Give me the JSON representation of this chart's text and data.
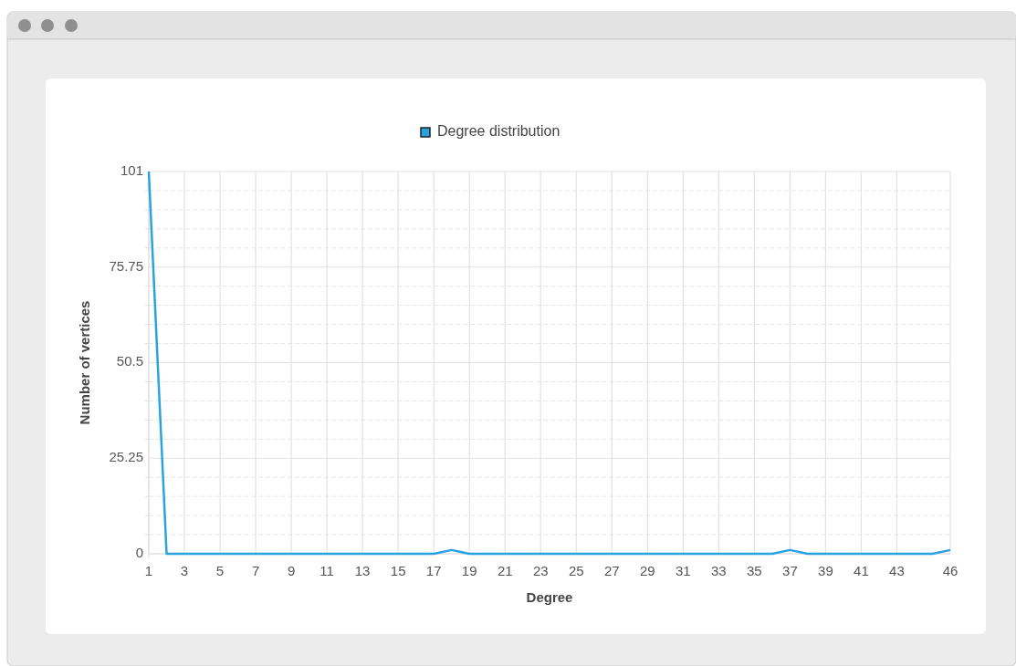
{
  "chart_data": {
    "type": "line",
    "xlabel": "Degree",
    "ylabel": "Number of vertices",
    "x": [
      1,
      2,
      3,
      4,
      5,
      6,
      7,
      8,
      9,
      10,
      11,
      12,
      13,
      14,
      15,
      16,
      17,
      18,
      19,
      20,
      21,
      22,
      23,
      24,
      25,
      26,
      27,
      28,
      29,
      30,
      31,
      32,
      33,
      34,
      35,
      36,
      37,
      38,
      39,
      40,
      41,
      42,
      43,
      44,
      45,
      46
    ],
    "series": [
      {
        "name": "Degree distribution",
        "color": "#29a3e0",
        "values": [
          101,
          0,
          0,
          0,
          0,
          0,
          0,
          0,
          0,
          0,
          0,
          0,
          0,
          0,
          0,
          0,
          0,
          1,
          0,
          0,
          0,
          0,
          0,
          0,
          0,
          0,
          0,
          0,
          0,
          0,
          0,
          0,
          0,
          0,
          0,
          0,
          1,
          0,
          0,
          0,
          0,
          0,
          0,
          0,
          0,
          1
        ]
      }
    ],
    "xlim": [
      1,
      46
    ],
    "xticks": [
      1,
      3,
      5,
      7,
      9,
      11,
      13,
      15,
      17,
      19,
      21,
      23,
      25,
      27,
      29,
      31,
      33,
      35,
      37,
      39,
      41,
      43,
      46
    ],
    "ylim": [
      0,
      101
    ],
    "yticks": [
      0,
      25.25,
      50.5,
      75.75,
      101
    ],
    "grid": true,
    "legend": "top",
    "marker": "none",
    "line_style": "solid"
  }
}
